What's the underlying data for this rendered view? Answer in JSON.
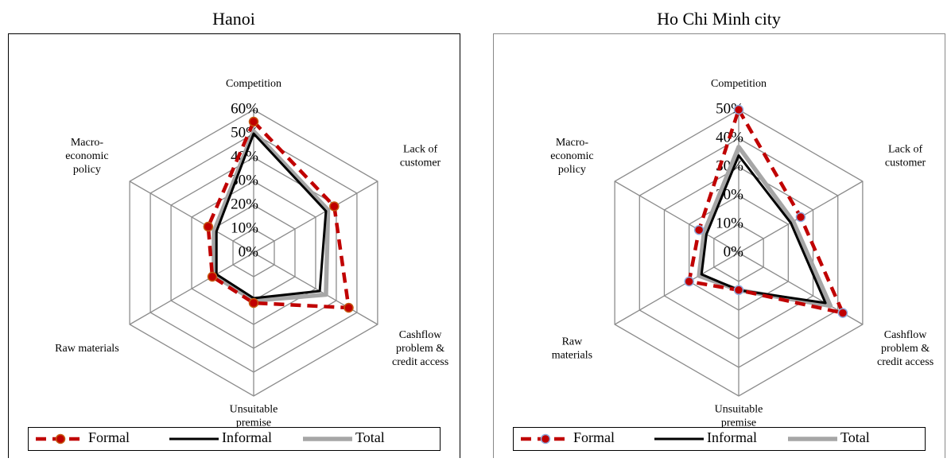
{
  "chart_data": [
    {
      "type": "radar",
      "title": "Hanoi",
      "categories": [
        [
          "Competition"
        ],
        [
          "Lack of",
          "customer"
        ],
        [
          "Cashflow",
          "problem &",
          "credit access"
        ],
        [
          "Unsuitable",
          "premise"
        ],
        [
          "Raw materials"
        ],
        [
          "Macro-",
          "economic",
          "policy"
        ]
      ],
      "ylim": [
        0,
        60
      ],
      "yticks": [
        {
          "value": 0,
          "label": "0%"
        },
        {
          "value": 10,
          "label": "10%"
        },
        {
          "value": 20,
          "label": "20%"
        },
        {
          "value": 30,
          "label": "30%"
        },
        {
          "value": 40,
          "label": "40%"
        },
        {
          "value": 50,
          "label": "50%"
        },
        {
          "value": 60,
          "label": "60%"
        }
      ],
      "series": [
        {
          "name": "Formal",
          "color": "#c00000",
          "marker_edge": "#c55a11",
          "values": [
            55,
            39,
            46,
            21,
            20,
            22
          ]
        },
        {
          "name": "Informal",
          "color": "#000000",
          "values": [
            50,
            35,
            32,
            19,
            18,
            18
          ]
        },
        {
          "name": "Total",
          "color": "#a6a6a6",
          "values": [
            51,
            36,
            35,
            20,
            19,
            19
          ]
        }
      ]
    },
    {
      "type": "radar",
      "title": "Ho Chi Minh city",
      "categories": [
        [
          "Competition"
        ],
        [
          "Lack of",
          "customer"
        ],
        [
          "Cashflow",
          "problem &",
          "credit access"
        ],
        [
          "Unsuitable",
          "premise"
        ],
        [
          "Raw",
          "materials"
        ],
        [
          "Macro-",
          "economic",
          "policy"
        ]
      ],
      "ylim": [
        0,
        50
      ],
      "yticks": [
        {
          "value": 0,
          "label": "0%"
        },
        {
          "value": 10,
          "label": "10%"
        },
        {
          "value": 20,
          "label": "20%"
        },
        {
          "value": 30,
          "label": "30%"
        },
        {
          "value": 40,
          "label": "40%"
        },
        {
          "value": 50,
          "label": "50%"
        }
      ],
      "series": [
        {
          "name": "Formal",
          "color": "#c00000",
          "marker_edge": "#8faadc",
          "values": [
            50,
            25,
            42,
            13,
            20,
            16
          ]
        },
        {
          "name": "Informal",
          "color": "#000000",
          "values": [
            34,
            21,
            35,
            13,
            15,
            13
          ]
        },
        {
          "name": "Total",
          "color": "#a6a6a6",
          "values": [
            37,
            22,
            37,
            13,
            16,
            14
          ]
        }
      ]
    }
  ]
}
